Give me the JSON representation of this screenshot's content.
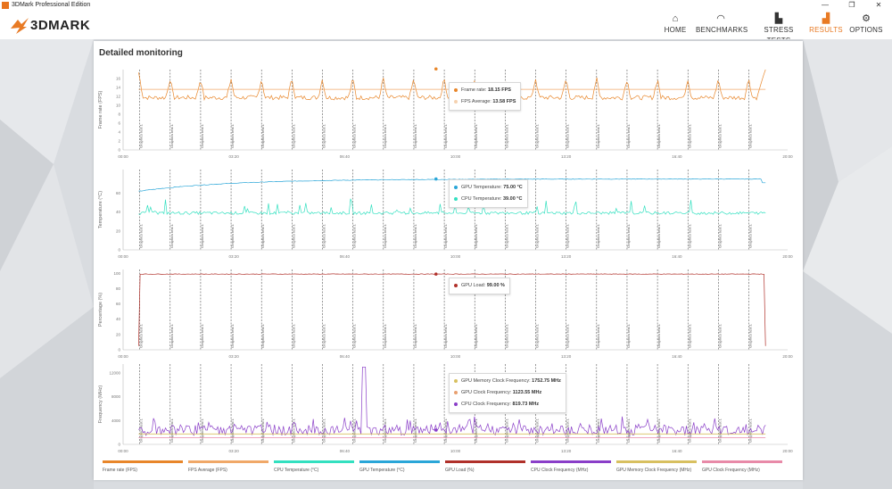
{
  "window": {
    "title": "3DMark Professional Edition"
  },
  "app": {
    "logo": "3DMARK"
  },
  "nav": [
    {
      "label": "HOME",
      "icon": "home-icon",
      "active": false
    },
    {
      "label": "BENCHMARKS",
      "icon": "gauge-icon",
      "active": false
    },
    {
      "label": "STRESS TESTS",
      "icon": "bar-chart-icon",
      "active": false
    },
    {
      "label": "RESULTS",
      "icon": "results-chart-icon",
      "active": true
    },
    {
      "label": "OPTIONS",
      "icon": "gear-icon",
      "active": false
    }
  ],
  "panel": {
    "title": "Detailed monitoring"
  },
  "colors": {
    "accent": "#e87a24",
    "frame_rate": "#e8862a",
    "fps_average": "#f0a868",
    "cpu_temp": "#33e0c0",
    "gpu_temp": "#2aa6d8",
    "gpu_load": "#b0302a",
    "cpu_clock": "#8a3ec8",
    "gpu_mem_clock": "#d8c060",
    "gpu_clock": "#e88aa8"
  },
  "x_ticks": [
    "00:00",
    "03:20",
    "06:40",
    "10:00",
    "13:20",
    "16:40",
    "20:00"
  ],
  "test_marker_label": "Graphics test 1",
  "tooltips": {
    "fps": [
      {
        "label": "Frame rate:",
        "value": "18.15 FPS"
      },
      {
        "label": "FPS Average:",
        "value": "13.58 FPS"
      }
    ],
    "temp": [
      {
        "label": "GPU Temperature:",
        "value": "75.00 °C"
      },
      {
        "label": "CPU Temperature:",
        "value": "39.00 °C"
      }
    ],
    "load": [
      {
        "label": "GPU Load:",
        "value": "99.00 %"
      }
    ],
    "freq": [
      {
        "label": "GPU Memory Clock Frequency:",
        "value": "1752.75 MHz"
      },
      {
        "label": "GPU Clock Frequency:",
        "value": "1123.55 MHz"
      },
      {
        "label": "CPU Clock Frequency:",
        "value": "819.73 MHz"
      }
    ]
  },
  "legend": [
    "Frame rate (FPS)",
    "FPS Average (FPS)",
    "CPU Temperature (°C)",
    "GPU Temperature (°C)",
    "GPU Load (%)",
    "CPU Clock Frequency (MHz)",
    "GPU Memory Clock Frequency (MHz)",
    "GPU Clock Frequency (MHz)"
  ],
  "chart_data": [
    {
      "type": "line",
      "ylabel": "Frame rate (FPS)",
      "yticks": [
        "0",
        "2",
        "4",
        "6",
        "8",
        "10",
        "12",
        "14",
        "16"
      ],
      "ylim": [
        0,
        18
      ],
      "xlim_seconds": [
        0,
        1200
      ],
      "test_markers_seconds": [
        30,
        85,
        140,
        195,
        250,
        305,
        360,
        415,
        470,
        525,
        580,
        635,
        690,
        745,
        800,
        855,
        910,
        965,
        1020,
        1075,
        1130
      ],
      "series": [
        {
          "name": "Frame rate",
          "color": "#e8862a",
          "pattern": "sawtooth",
          "base": 11.5,
          "amp": 4.5,
          "end_value": 18.15
        },
        {
          "name": "FPS Average",
          "color": "#f0a868",
          "pattern": "flat",
          "base": 13.58
        }
      ]
    },
    {
      "type": "line",
      "ylabel": "Temperature (°C)",
      "yticks": [
        "0",
        "20",
        "40",
        "60"
      ],
      "ylim": [
        0,
        85
      ],
      "series": [
        {
          "name": "GPU Temperature",
          "color": "#2aa6d8",
          "pattern": "rise",
          "start": 62,
          "base": 75
        },
        {
          "name": "CPU Temperature",
          "color": "#33e0c0",
          "pattern": "spiky",
          "base": 39,
          "amp": 14
        }
      ]
    },
    {
      "type": "line",
      "ylabel": "Percentage (%)",
      "yticks": [
        "0",
        "20",
        "40",
        "60",
        "80",
        "100"
      ],
      "ylim": [
        0,
        105
      ],
      "series": [
        {
          "name": "GPU Load",
          "color": "#b0302a",
          "pattern": "plateau",
          "base": 99
        }
      ]
    },
    {
      "type": "line",
      "ylabel": "Frequency (MHz)",
      "yticks": [
        "0",
        "4000",
        "8000",
        "12000"
      ],
      "ylim": [
        0,
        13500
      ],
      "series": [
        {
          "name": "CPU Clock Frequency",
          "color": "#8a3ec8",
          "pattern": "noisy",
          "base": 2400,
          "amp": 1800,
          "spike_at": 0.36,
          "spike": 13000
        },
        {
          "name": "GPU Memory Clock Frequency",
          "color": "#d8c060",
          "pattern": "flat",
          "base": 1752.75
        },
        {
          "name": "GPU Clock Frequency",
          "color": "#e88aa8",
          "pattern": "flat",
          "base": 1123.55
        }
      ]
    }
  ]
}
